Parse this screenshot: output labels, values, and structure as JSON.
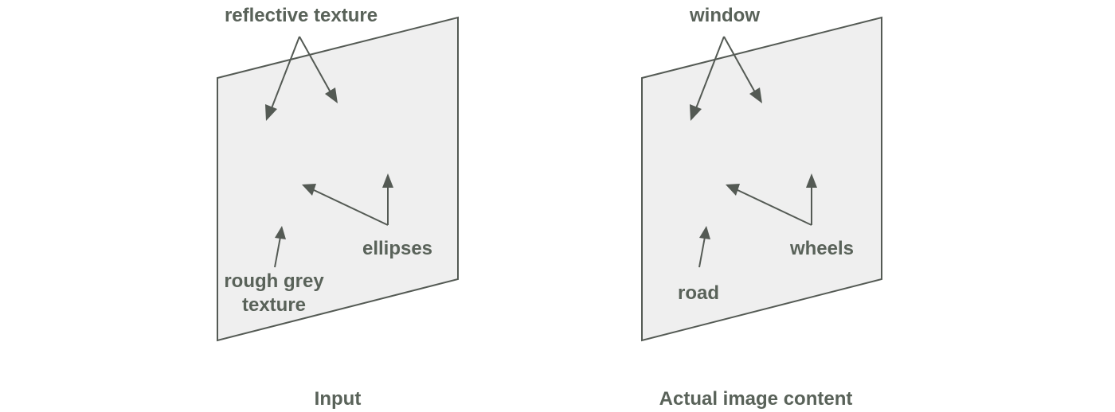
{
  "panels": {
    "input": {
      "caption": "Input",
      "labels": {
        "top": "reflective texture",
        "right": "ellipses",
        "bottom_line1": "rough grey",
        "bottom_line2": "texture"
      }
    },
    "actual": {
      "caption": "Actual image content",
      "labels": {
        "top": "window",
        "right": "wheels",
        "bottom_line1": "road"
      }
    }
  },
  "colors": {
    "panel_fill": "#efefef",
    "stroke": "#545a54",
    "text": "#596259"
  }
}
